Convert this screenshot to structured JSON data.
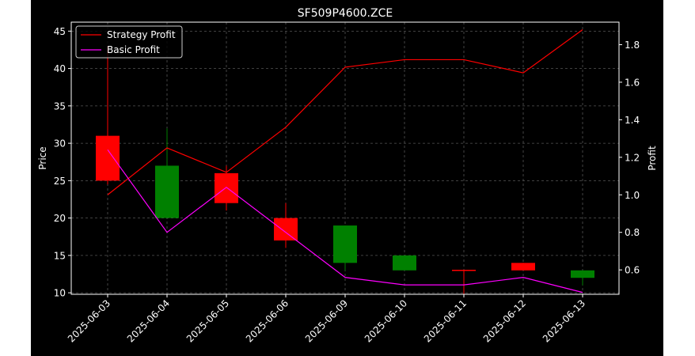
{
  "chart_data": {
    "type": "candlestick",
    "title": "SF509P4600.ZCE",
    "xlabel": "",
    "ylabel_left": "Price",
    "ylabel_right": "Profit",
    "categories": [
      "2025-06-03",
      "2025-06-04",
      "2025-06-05",
      "2025-06-06",
      "2025-06-09",
      "2025-06-10",
      "2025-06-11",
      "2025-06-12",
      "2025-06-13"
    ],
    "ylim_left": [
      9.8,
      46.2
    ],
    "yticks_left": [
      10,
      15,
      20,
      25,
      30,
      35,
      40,
      45
    ],
    "ylim_right": [
      0.47,
      1.92
    ],
    "yticks_right": [
      0.6,
      0.8,
      1.0,
      1.2,
      1.4,
      1.6,
      1.8
    ],
    "ytick_labels_right": [
      "0.6",
      "0.8",
      "1.0",
      "1.2",
      "1.4",
      "1.6",
      "1.8"
    ],
    "grid": true,
    "legend_position": "top-left",
    "candles": [
      {
        "open": 25,
        "close": 31,
        "high": 43,
        "low": 24.5,
        "color": "#ff0000"
      },
      {
        "open": 27,
        "close": 20,
        "high": 32,
        "low": 20,
        "color": "#008000"
      },
      {
        "open": 22,
        "close": 26,
        "high": 27,
        "low": 21,
        "color": "#ff0000"
      },
      {
        "open": 17,
        "close": 20,
        "high": 22,
        "low": 16,
        "color": "#ff0000"
      },
      {
        "open": 19,
        "close": 14,
        "high": 19,
        "low": 13,
        "color": "#008000"
      },
      {
        "open": 15,
        "close": 13,
        "high": 15,
        "low": 13,
        "color": "#008000"
      },
      {
        "open": 13,
        "close": 13,
        "high": 13,
        "low": 9.8,
        "color": "#ff0000"
      },
      {
        "open": 13,
        "close": 14,
        "high": 14,
        "low": 13,
        "color": "#ff0000"
      },
      {
        "open": 13,
        "close": 12,
        "high": 13,
        "low": 11,
        "color": "#008000"
      }
    ],
    "series": [
      {
        "name": "Strategy Profit",
        "axis": "right",
        "color": "#ff0000",
        "values": [
          1.0,
          1.25,
          1.12,
          1.36,
          1.68,
          1.72,
          1.72,
          1.65,
          1.88
        ]
      },
      {
        "name": "Basic Profit",
        "axis": "right",
        "color": "#ff00ff",
        "values": [
          1.24,
          0.8,
          1.04,
          0.8,
          0.56,
          0.52,
          0.52,
          0.56,
          0.48
        ]
      }
    ]
  }
}
